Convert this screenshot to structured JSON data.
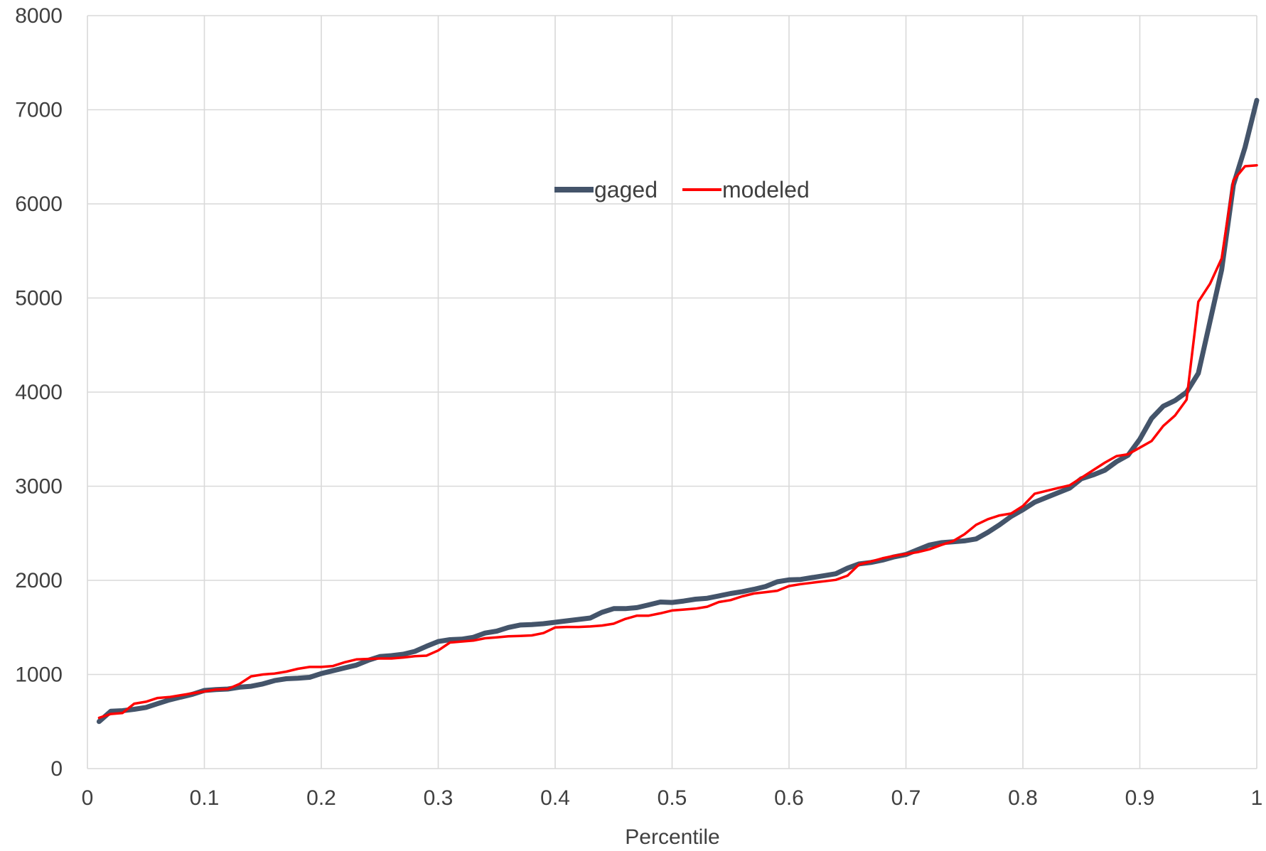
{
  "chart_data": {
    "type": "line",
    "title": "",
    "xlabel": "Percentile",
    "ylabel": "",
    "xlim": [
      0,
      1
    ],
    "ylim": [
      0,
      8000
    ],
    "grid": true,
    "legend_position": "upper-center",
    "x_ticks": [
      0,
      0.1,
      0.2,
      0.3,
      0.4,
      0.5,
      0.6,
      0.7,
      0.8,
      0.9,
      1
    ],
    "x_tick_labels": [
      "0",
      "0.1",
      "0.2",
      "0.3",
      "0.4",
      "0.5",
      "0.6",
      "0.7",
      "0.8",
      "0.9",
      "1"
    ],
    "y_ticks": [
      0,
      1000,
      2000,
      3000,
      4000,
      5000,
      6000,
      7000,
      8000
    ],
    "y_tick_labels": [
      "0",
      "1000",
      "2000",
      "3000",
      "4000",
      "5000",
      "6000",
      "7000",
      "8000"
    ],
    "series": [
      {
        "name": "gaged",
        "color": "#44546a",
        "x": [
          0.01,
          0.02,
          0.03,
          0.04,
          0.05,
          0.06,
          0.07,
          0.08,
          0.09,
          0.1,
          0.11,
          0.12,
          0.13,
          0.14,
          0.15,
          0.16,
          0.17,
          0.18,
          0.19,
          0.2,
          0.21,
          0.22,
          0.23,
          0.24,
          0.25,
          0.26,
          0.27,
          0.28,
          0.29,
          0.3,
          0.31,
          0.32,
          0.33,
          0.34,
          0.35,
          0.36,
          0.37,
          0.38,
          0.39,
          0.4,
          0.41,
          0.42,
          0.43,
          0.44,
          0.45,
          0.46,
          0.47,
          0.48,
          0.49,
          0.5,
          0.51,
          0.52,
          0.53,
          0.54,
          0.55,
          0.56,
          0.57,
          0.58,
          0.59,
          0.6,
          0.61,
          0.62,
          0.63,
          0.64,
          0.65,
          0.66,
          0.67,
          0.68,
          0.69,
          0.7,
          0.71,
          0.72,
          0.73,
          0.74,
          0.75,
          0.76,
          0.77,
          0.78,
          0.79,
          0.8,
          0.81,
          0.82,
          0.83,
          0.84,
          0.85,
          0.86,
          0.87,
          0.88,
          0.89,
          0.9,
          0.91,
          0.92,
          0.93,
          0.94,
          0.95,
          0.96,
          0.97,
          0.98,
          0.99,
          1.0
        ],
        "values": [
          500,
          610,
          615,
          630,
          650,
          690,
          730,
          760,
          790,
          830,
          840,
          845,
          865,
          875,
          900,
          935,
          955,
          960,
          970,
          1010,
          1040,
          1070,
          1100,
          1150,
          1190,
          1200,
          1215,
          1245,
          1300,
          1350,
          1370,
          1375,
          1395,
          1440,
          1460,
          1500,
          1525,
          1530,
          1540,
          1555,
          1570,
          1585,
          1600,
          1660,
          1700,
          1700,
          1710,
          1740,
          1770,
          1765,
          1780,
          1800,
          1810,
          1835,
          1860,
          1880,
          1905,
          1935,
          1985,
          2005,
          2010,
          2030,
          2050,
          2070,
          2130,
          2175,
          2190,
          2215,
          2250,
          2275,
          2325,
          2375,
          2400,
          2410,
          2420,
          2440,
          2510,
          2590,
          2680,
          2750,
          2830,
          2880,
          2930,
          2980,
          3080,
          3120,
          3170,
          3260,
          3330,
          3500,
          3720,
          3850,
          3910,
          4000,
          4200,
          4750,
          5300,
          6200,
          6600,
          7100
        ]
      },
      {
        "name": "modeled",
        "color": "#ff0000",
        "x": [
          0.01,
          0.02,
          0.03,
          0.04,
          0.05,
          0.06,
          0.07,
          0.08,
          0.09,
          0.1,
          0.11,
          0.12,
          0.13,
          0.14,
          0.15,
          0.16,
          0.17,
          0.18,
          0.19,
          0.2,
          0.21,
          0.22,
          0.23,
          0.24,
          0.25,
          0.26,
          0.27,
          0.28,
          0.29,
          0.3,
          0.31,
          0.32,
          0.33,
          0.34,
          0.35,
          0.36,
          0.37,
          0.38,
          0.39,
          0.4,
          0.41,
          0.42,
          0.43,
          0.44,
          0.45,
          0.46,
          0.47,
          0.48,
          0.49,
          0.5,
          0.51,
          0.52,
          0.53,
          0.54,
          0.55,
          0.56,
          0.57,
          0.58,
          0.59,
          0.6,
          0.61,
          0.62,
          0.63,
          0.64,
          0.65,
          0.66,
          0.67,
          0.68,
          0.69,
          0.7,
          0.71,
          0.72,
          0.73,
          0.74,
          0.75,
          0.76,
          0.77,
          0.78,
          0.79,
          0.8,
          0.81,
          0.82,
          0.83,
          0.84,
          0.85,
          0.86,
          0.87,
          0.88,
          0.89,
          0.9,
          0.91,
          0.92,
          0.93,
          0.94,
          0.95,
          0.96,
          0.97,
          0.98,
          0.99,
          1.0
        ],
        "values": [
          540,
          580,
          590,
          690,
          710,
          750,
          760,
          780,
          800,
          820,
          840,
          845,
          900,
          980,
          1000,
          1010,
          1030,
          1060,
          1080,
          1080,
          1090,
          1130,
          1160,
          1165,
          1170,
          1170,
          1180,
          1195,
          1200,
          1255,
          1340,
          1350,
          1360,
          1385,
          1395,
          1405,
          1410,
          1415,
          1440,
          1500,
          1505,
          1505,
          1510,
          1520,
          1540,
          1590,
          1625,
          1625,
          1650,
          1680,
          1690,
          1700,
          1720,
          1770,
          1790,
          1830,
          1860,
          1875,
          1890,
          1940,
          1960,
          1975,
          1990,
          2005,
          2050,
          2170,
          2200,
          2235,
          2260,
          2280,
          2300,
          2330,
          2375,
          2415,
          2490,
          2590,
          2650,
          2690,
          2710,
          2790,
          2920,
          2950,
          2980,
          3010,
          3090,
          3170,
          3250,
          3320,
          3340,
          3410,
          3480,
          3640,
          3750,
          3920,
          4960,
          5150,
          5420,
          6250,
          6400,
          6410
        ]
      }
    ]
  }
}
